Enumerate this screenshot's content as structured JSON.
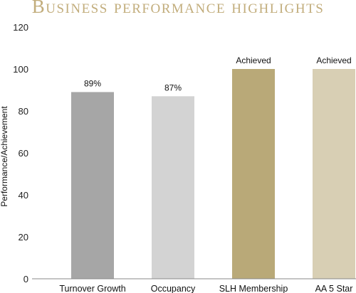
{
  "chart_data": {
    "type": "bar",
    "title": "Business performance highlights",
    "ylabel": "Performance/Achievement",
    "xlabel": "",
    "ylim": [
      0,
      120
    ],
    "yticks": [
      0,
      20,
      40,
      60,
      80,
      100,
      120
    ],
    "categories": [
      "Turnover Growth",
      "Occupancy",
      "SLH Membership",
      "AA 5 Star"
    ],
    "values": [
      89,
      87,
      100,
      100
    ],
    "data_labels": [
      "89%",
      "87%",
      "Achieved",
      "Achieved"
    ],
    "colors": [
      "#a6a6a6",
      "#d3d3d3",
      "#b9a978",
      "#d8cfb4"
    ],
    "grid": false,
    "legend": "none"
  },
  "styles": {
    "title_color": "#c2ad7c",
    "axis_color": "#888888"
  }
}
